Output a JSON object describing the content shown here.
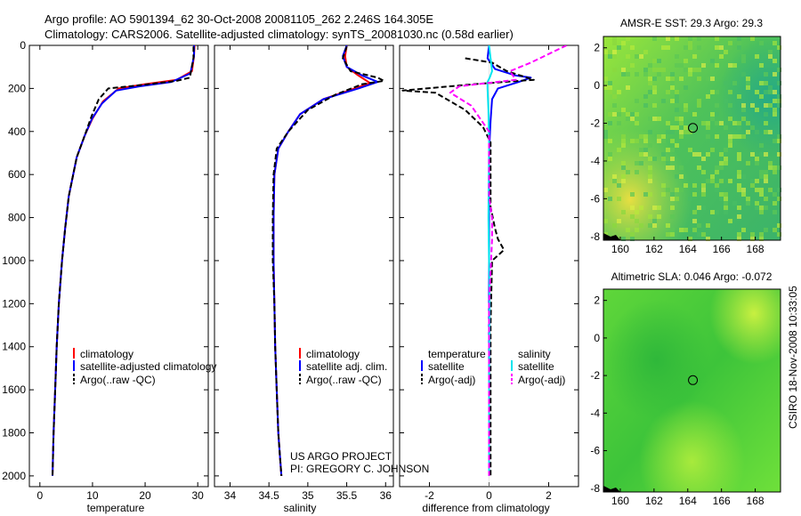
{
  "header": {
    "line1": "Argo profile: AO 5901394_62 30-Oct-2008 20081105_262 2.246S 164.305E",
    "line2": "Climatology: CARS2006. Satellite-adjusted climatology: synTS_20081030.nc (0.58d earlier)"
  },
  "colors": {
    "climatology": "#ff0000",
    "satellite": "#0000ff",
    "argo": "#000000",
    "sal_satellite": "#00e5ee",
    "sal_argo": "#ff00ff"
  },
  "chart_data": [
    {
      "type": "line",
      "id": "temperature",
      "xlabel": "temperature",
      "ylabel": "",
      "xlim": [
        -2,
        32
      ],
      "ylim": [
        2050,
        0
      ],
      "xticks": [
        0,
        10,
        20,
        30
      ],
      "yticks": [
        0,
        200,
        400,
        600,
        800,
        1000,
        1200,
        1400,
        1600,
        1800,
        2000
      ],
      "series": [
        {
          "name": "climatology",
          "style": "solid",
          "color": "#ff0000",
          "x": [
            29.4,
            29.3,
            28.9,
            26.0,
            20.0,
            15.0,
            12.0,
            10.0,
            8.5,
            7.0,
            5.5,
            4.8,
            4.2,
            3.6,
            3.2,
            2.9,
            2.6,
            2.4
          ],
          "y": [
            0,
            50,
            120,
            160,
            180,
            200,
            260,
            340,
            420,
            520,
            700,
            850,
            1000,
            1200,
            1400,
            1600,
            1800,
            2000
          ]
        },
        {
          "name": "satellite-adjusted climatology",
          "style": "solid",
          "color": "#0000ff",
          "x": [
            29.3,
            29.3,
            28.6,
            25.0,
            19.0,
            14.5,
            11.8,
            9.9,
            8.5,
            7.0,
            5.5,
            4.8,
            4.2,
            3.6,
            3.2,
            2.9,
            2.6,
            2.4
          ],
          "y": [
            0,
            50,
            130,
            170,
            190,
            210,
            270,
            340,
            420,
            520,
            700,
            850,
            1000,
            1200,
            1400,
            1600,
            1800,
            2000
          ]
        },
        {
          "name": "Argo(..raw -QC)",
          "style": "dashed",
          "color": "#000000",
          "x": [
            29.2,
            29.2,
            28.5,
            26.0,
            19.0,
            13.0,
            11.2,
            9.8,
            8.5,
            7.0,
            5.5,
            4.8,
            4.2,
            3.6,
            3.2,
            2.9,
            2.6,
            2.4
          ],
          "y": [
            5,
            60,
            150,
            165,
            185,
            200,
            250,
            330,
            420,
            520,
            700,
            850,
            1000,
            1200,
            1400,
            1600,
            1800,
            2000
          ]
        }
      ],
      "legend": {
        "position": "bottom-right",
        "entries": [
          "climatology",
          "satellite-adjusted climatology",
          "Argo(..raw -QC)"
        ]
      }
    },
    {
      "type": "line",
      "id": "salinity",
      "xlabel": "salinity",
      "ylabel": "",
      "xlim": [
        33.8,
        36.1
      ],
      "ylim": [
        2050,
        0
      ],
      "xticks": [
        34,
        34.5,
        35,
        35.5,
        36
      ],
      "yticks": [
        0,
        200,
        400,
        600,
        800,
        1000,
        1200,
        1400,
        1600,
        1800,
        2000
      ],
      "series": [
        {
          "name": "climatology",
          "style": "solid",
          "color": "#ff0000",
          "x": [
            35.5,
            35.48,
            35.5,
            35.65,
            35.8,
            35.6,
            35.2,
            34.9,
            34.75,
            34.62,
            34.57,
            34.56,
            34.56,
            34.57,
            34.58,
            34.6,
            34.62,
            34.64,
            34.66
          ],
          "y": [
            0,
            50,
            100,
            140,
            175,
            200,
            250,
            320,
            400,
            480,
            600,
            800,
            1000,
            1200,
            1400,
            1600,
            1800,
            1900,
            2000
          ]
        },
        {
          "name": "satellite adj. clim.",
          "style": "solid",
          "color": "#0000ff",
          "x": [
            35.5,
            35.45,
            35.5,
            35.7,
            35.9,
            35.65,
            35.2,
            34.9,
            34.75,
            34.62,
            34.57,
            34.56,
            34.56,
            34.57,
            34.58,
            34.6,
            34.62,
            34.64,
            34.66
          ],
          "y": [
            0,
            50,
            100,
            140,
            170,
            200,
            250,
            320,
            400,
            480,
            600,
            800,
            1000,
            1200,
            1400,
            1600,
            1800,
            1900,
            2000
          ]
        },
        {
          "name": "Argo(..raw -QC)",
          "style": "dashed",
          "color": "#000000",
          "x": [
            35.5,
            35.45,
            35.55,
            35.9,
            35.98,
            35.7,
            35.35,
            35.0,
            34.75,
            34.6,
            34.56,
            34.55,
            34.55,
            34.57,
            34.58,
            34.6,
            34.62,
            34.64,
            34.66
          ],
          "y": [
            5,
            60,
            120,
            150,
            165,
            180,
            230,
            300,
            400,
            480,
            600,
            800,
            1000,
            1200,
            1400,
            1600,
            1800,
            1900,
            2000
          ]
        }
      ],
      "legend": {
        "position": "bottom-right",
        "entries": [
          "climatology",
          "satellite adj. clim.",
          "Argo(..raw -QC)"
        ]
      },
      "annotations": [
        "US ARGO PROJECT",
        "PI: GREGORY C. JOHNSON"
      ]
    },
    {
      "type": "line",
      "id": "difference",
      "xlabel": "difference from climatology",
      "ylabel": "",
      "xlim": [
        -3,
        3
      ],
      "ylim": [
        2050,
        0
      ],
      "xticks": [
        -2,
        0,
        2
      ],
      "yticks": [
        0,
        200,
        400,
        600,
        800,
        1000,
        1200,
        1400,
        1600,
        1800,
        2000
      ],
      "series": [
        {
          "name": "temperature satellite",
          "style": "solid",
          "color": "#0000ff",
          "x": [
            0,
            -0.05,
            0.2,
            0.9,
            1.4,
            1.0,
            0.3,
            0.1,
            0.05,
            0,
            0,
            0,
            0,
            0,
            0
          ],
          "y": [
            0,
            60,
            110,
            140,
            150,
            170,
            200,
            250,
            350,
            500,
            800,
            1200,
            1500,
            1800,
            2000
          ]
        },
        {
          "name": "temperature Argo(-adj)",
          "style": "dashed",
          "color": "#000000",
          "x": [
            -0.8,
            0.1,
            0.6,
            1.5,
            -0.5,
            -2.9,
            -1.8,
            -0.8,
            -0.2,
            0.05,
            0.05,
            0.2,
            0.3,
            0.5,
            0.1,
            0.05,
            0.05,
            0.05
          ],
          "y": [
            60,
            80,
            120,
            160,
            180,
            210,
            220,
            300,
            380,
            450,
            750,
            850,
            900,
            950,
            1000,
            1300,
            1600,
            2000
          ]
        },
        {
          "name": "salinity satellite",
          "style": "solid",
          "color": "#00e5ee",
          "x": [
            0,
            0.05,
            0.1,
            0.02,
            -0.05,
            -0.05,
            -0.02,
            0.0,
            -0.02,
            0.02,
            0.0,
            0.0
          ],
          "y": [
            0,
            60,
            120,
            150,
            170,
            200,
            300,
            450,
            800,
            1200,
            1600,
            2000
          ]
        },
        {
          "name": "salinity Argo(-adj)",
          "style": "dashed",
          "color": "#ff00ff",
          "x": [
            2.6,
            1.4,
            0.7,
            0.9,
            -1.0,
            -1.3,
            -0.6,
            0.0,
            0.0,
            0.1,
            0.1,
            0.0,
            0.0,
            0.0
          ],
          "y": [
            0,
            80,
            120,
            160,
            190,
            220,
            280,
            400,
            700,
            800,
            900,
            1200,
            1600,
            2000
          ]
        }
      ],
      "legend": {
        "position": "bottom",
        "temperature_header": "temperature",
        "salinity_header": "salinity",
        "entries": [
          "satellite",
          "Argo(-adj)",
          "satellite",
          "Argo(-adj)"
        ]
      }
    },
    {
      "type": "heatmap",
      "id": "sst-map",
      "title": "AMSR-E SST: 29.3 Argo: 29.3",
      "xlim": [
        159,
        169.5
      ],
      "ylim": [
        -8.2,
        2.6
      ],
      "xticks": [
        160,
        162,
        164,
        166,
        168
      ],
      "yticks": [
        2,
        0,
        -2,
        -4,
        -6,
        -8
      ],
      "marker": {
        "lon": 164.305,
        "lat": -2.246
      }
    },
    {
      "type": "heatmap",
      "id": "sla-map",
      "title": "Altimetric SLA: 0.046 Argo: -0.072",
      "xlim": [
        159,
        169.5
      ],
      "ylim": [
        -8.2,
        2.6
      ],
      "xticks": [
        160,
        162,
        164,
        166,
        168
      ],
      "yticks": [
        2,
        0,
        -2,
        -4,
        -6,
        -8
      ],
      "marker": {
        "lon": 164.305,
        "lat": -2.246
      }
    }
  ],
  "footer_stamp": "CSIRO 18-Nov-2008 10:33:05"
}
